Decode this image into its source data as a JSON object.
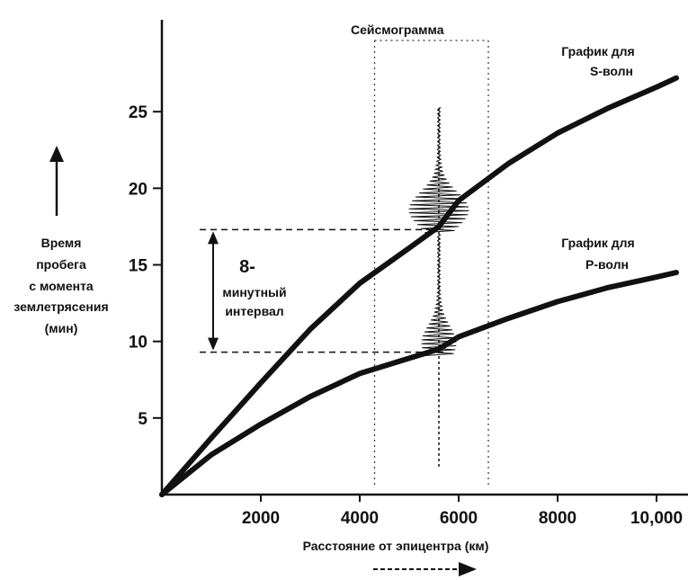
{
  "chart_data": {
    "type": "line",
    "xlabel": "Расстояние от эпицентра (км)",
    "ylabel_lines": [
      "Время",
      "пробега",
      "с момента",
      "землетрясения",
      "(мин)"
    ],
    "x_ticks": [
      "2000",
      "4000",
      "6000",
      "8000",
      "10,000"
    ],
    "x_tick_values": [
      2000,
      4000,
      6000,
      8000,
      10000
    ],
    "y_ticks": [
      "5",
      "10",
      "15",
      "20",
      "25"
    ],
    "y_tick_values": [
      5,
      10,
      15,
      20,
      25
    ],
    "xlim": [
      0,
      10600
    ],
    "ylim": [
      0,
      31
    ],
    "grid": false,
    "series": [
      {
        "name_lines": [
          "График для",
          "S-волн"
        ],
        "color": "#111111",
        "x": [
          0,
          1000,
          2000,
          3000,
          4000,
          5000,
          5600,
          6000,
          7000,
          8000,
          9000,
          10000,
          10400
        ],
        "y": [
          0,
          3.7,
          7.3,
          10.8,
          13.8,
          16.1,
          17.5,
          19.2,
          21.6,
          23.6,
          25.2,
          26.6,
          27.2
        ]
      },
      {
        "name_lines": [
          "График для",
          "Р-волн"
        ],
        "color": "#111111",
        "x": [
          0,
          1000,
          2000,
          3000,
          4000,
          5000,
          5600,
          6000,
          7000,
          8000,
          9000,
          10000,
          10400
        ],
        "y": [
          0,
          2.6,
          4.6,
          6.4,
          7.9,
          8.9,
          9.5,
          10.3,
          11.5,
          12.6,
          13.5,
          14.2,
          14.5
        ]
      }
    ],
    "annotations": {
      "seismogram_label": "Сейсмограмма",
      "interval_number": "8-",
      "interval_text_lines": [
        "минутный",
        "интервал"
      ],
      "interval_y": [
        9.3,
        17.3
      ],
      "seismogram_distance": 5600,
      "seismogram_window_x": [
        4300,
        6600
      ]
    }
  }
}
